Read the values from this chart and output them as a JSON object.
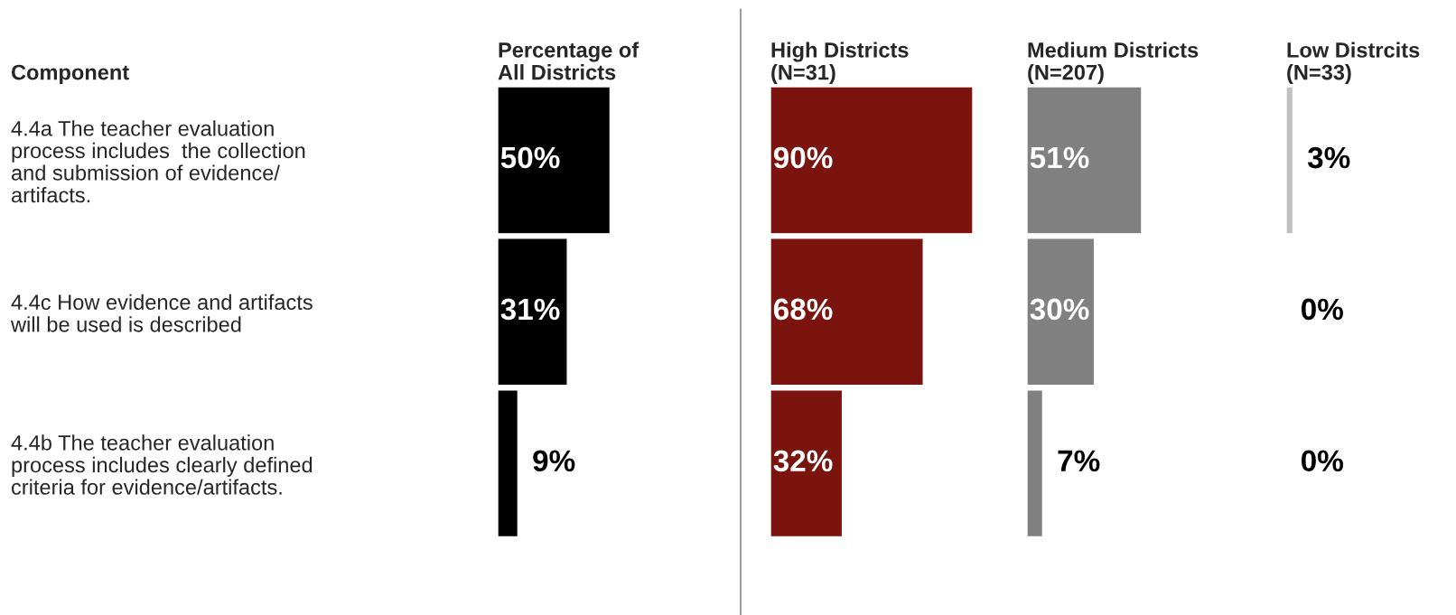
{
  "chart_data": [
    {
      "type": "bar",
      "orientation": "horizontal",
      "title": "Percentage of\nAll Districts",
      "ylabel": "Component",
      "categories": [
        "4.4a The teacher evaluation\nprocess includes  the collection\nand submission of evidence/\nartifacts.",
        "4.4c How evidence and artifacts\nwill be used is described",
        "4.4b The teacher evaluation\nprocess includes clearly defined\ncriteria for evidence/artifacts."
      ],
      "values": [
        50,
        31,
        9
      ],
      "value_labels": [
        "50%",
        "31%",
        "9%"
      ],
      "color": "#000000",
      "tick_labels": "y"
    },
    {
      "type": "bar",
      "orientation": "horizontal",
      "title": "High Districts\n(N=31)",
      "categories": [
        null,
        null,
        null
      ],
      "values": [
        90,
        68,
        32
      ],
      "value_labels": [
        "90%",
        "68%",
        "32%"
      ],
      "color": "#7b130e",
      "tick_labels": false
    },
    {
      "type": "bar",
      "orientation": "horizontal",
      "title": "Medium Districts\n(N=207)",
      "categories": [
        null,
        null,
        null
      ],
      "values": [
        51,
        30,
        7
      ],
      "value_labels": [
        "51%",
        "30%",
        "7%"
      ],
      "color": "#808080",
      "tick_labels": false
    },
    {
      "type": "bar",
      "orientation": "horizontal",
      "title": "Low Distrcits\n(N=33)",
      "categories": [
        null,
        null,
        null
      ],
      "values": [
        3,
        0,
        0
      ],
      "value_labels": [
        "3%",
        "0%",
        "0%"
      ],
      "color": "#c0c0c0",
      "tick_labels": false
    }
  ]
}
